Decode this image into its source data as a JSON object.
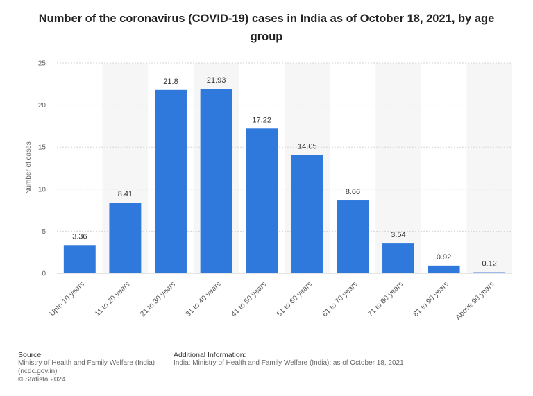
{
  "chart_data": {
    "type": "bar",
    "title": "Number of the coronavirus (COVID-19) cases in India as of October 18, 2021, by age group",
    "categories": [
      "Upto 10 years",
      "11 to 20 years",
      "21 to 30 years",
      "31 to 40 years",
      "41 to 50 years",
      "51 to 60 years",
      "61 to 70 years",
      "71 to 80 years",
      "81 to 90 years",
      "Above 90 years"
    ],
    "values": [
      3.36,
      8.41,
      21.8,
      21.93,
      17.22,
      14.05,
      8.66,
      3.54,
      0.92,
      0.12
    ],
    "value_labels": [
      "3.36",
      "8.41",
      "21.8",
      "21.93",
      "17.22",
      "14.05",
      "8.66",
      "3.54",
      "0.92",
      "0.12"
    ],
    "xlabel": "",
    "ylabel": "Number of cases",
    "ylim": [
      0,
      25
    ],
    "yticks": [
      0,
      5,
      10,
      15,
      20,
      25
    ],
    "grid": true,
    "bar_color": "#2f78dc"
  },
  "footer": {
    "source_heading": "Source",
    "source_line1": "Ministry of Health and Family Welfare (India)",
    "source_line2": "(ncdc.gov.in)",
    "copyright": "© Statista 2024",
    "info_heading": "Additional Information:",
    "info_text": "India; Ministry of Health and Family Welfare (India); as of October 18, 2021"
  }
}
